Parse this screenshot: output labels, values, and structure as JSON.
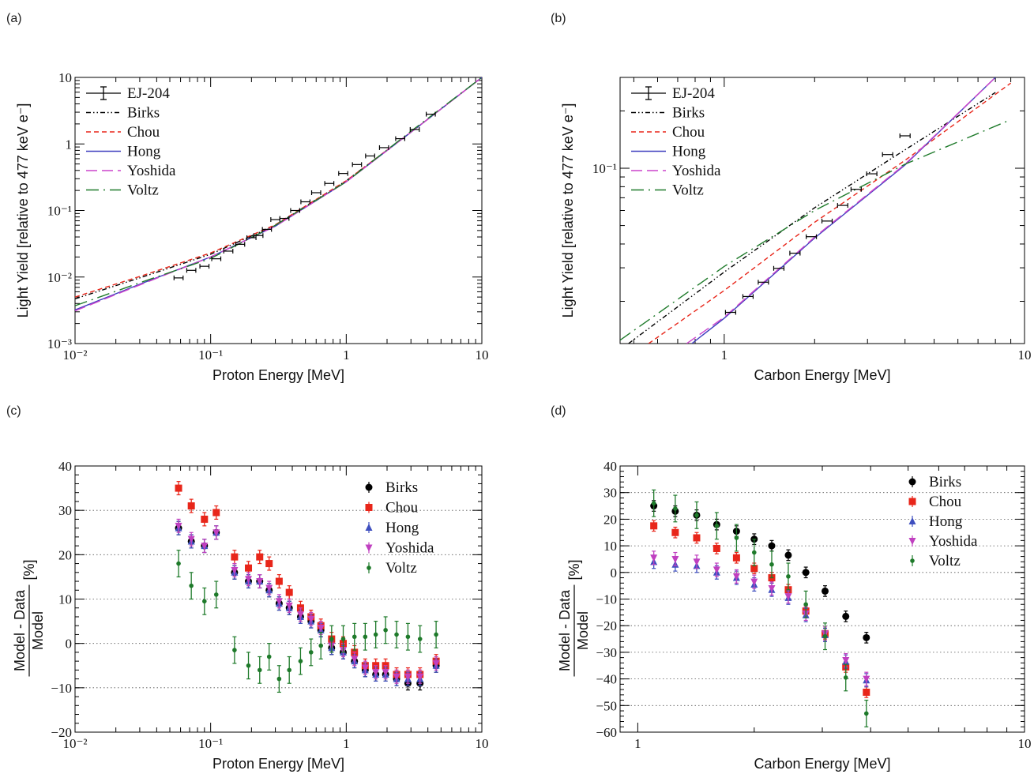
{
  "chart_data": [
    {
      "panel_label": "(a)",
      "type": "line",
      "xlabel": "Proton Energy [MeV]",
      "ylabel": "Light Yield [relative to 477 keV e⁻]",
      "x_scale": "log",
      "y_scale": "log",
      "xlim": [
        0.01,
        10
      ],
      "ylim": [
        0.001,
        10
      ],
      "x_ticks": [
        {
          "v": 0.01,
          "label": "10⁻²"
        },
        {
          "v": 0.1,
          "label": "10⁻¹"
        },
        {
          "v": 1,
          "label": "1"
        },
        {
          "v": 10,
          "label": "10"
        }
      ],
      "y_ticks": [
        {
          "v": 0.001,
          "label": "10⁻³"
        },
        {
          "v": 0.01,
          "label": "10⁻²"
        },
        {
          "v": 0.1,
          "label": "10⁻¹"
        },
        {
          "v": 1,
          "label": "1"
        },
        {
          "v": 10,
          "label": "10"
        }
      ],
      "legend_position": "top-left",
      "data_series": {
        "name": "EJ-204",
        "x": [
          0.058,
          0.072,
          0.09,
          0.11,
          0.135,
          0.165,
          0.2,
          0.225,
          0.26,
          0.3,
          0.35,
          0.42,
          0.5,
          0.6,
          0.75,
          0.95,
          1.2,
          1.5,
          1.9,
          2.5,
          3.2,
          4.2
        ],
        "y": [
          0.0097,
          0.0126,
          0.0145,
          0.0188,
          0.0245,
          0.031,
          0.039,
          0.042,
          0.052,
          0.073,
          0.076,
          0.1,
          0.135,
          0.185,
          0.255,
          0.36,
          0.49,
          0.66,
          0.88,
          1.2,
          1.65,
          2.8
        ],
        "xerr": 0.08
      },
      "series": [
        {
          "name": "Birks",
          "style": "dash-dot-dot",
          "color": "#000000",
          "x": [
            0.01,
            0.03,
            0.1,
            0.3,
            1,
            3,
            10
          ],
          "y": [
            0.0047,
            0.0097,
            0.022,
            0.06,
            0.28,
            1.5,
            10
          ]
        },
        {
          "name": "Chou",
          "style": "dashed",
          "color": "#e8261a",
          "x": [
            0.01,
            0.03,
            0.1,
            0.3,
            1,
            3,
            10
          ],
          "y": [
            0.005,
            0.0102,
            0.023,
            0.061,
            0.28,
            1.5,
            10
          ]
        },
        {
          "name": "Hong",
          "style": "solid",
          "color": "#3f3fbf",
          "x": [
            0.01,
            0.03,
            0.1,
            0.3,
            1,
            3,
            10
          ],
          "y": [
            0.0032,
            0.0078,
            0.02,
            0.058,
            0.27,
            1.5,
            10
          ]
        },
        {
          "name": "Yoshida",
          "style": "long-dash",
          "color": "#cc44cc",
          "x": [
            0.01,
            0.03,
            0.1,
            0.3,
            1,
            3,
            10
          ],
          "y": [
            0.0031,
            0.0076,
            0.02,
            0.058,
            0.27,
            1.5,
            10
          ]
        },
        {
          "name": "Voltz",
          "style": "long-dash-dot",
          "color": "#1e7a2a",
          "x": [
            0.01,
            0.03,
            0.1,
            0.3,
            1,
            3,
            10
          ],
          "y": [
            0.0037,
            0.0082,
            0.019,
            0.06,
            0.27,
            1.55,
            10
          ]
        }
      ]
    },
    {
      "panel_label": "(b)",
      "type": "line",
      "xlabel": "Carbon Energy [MeV]",
      "ylabel": "Light Yield [relative to 477 keV e⁻]",
      "x_scale": "log",
      "y_scale": "log",
      "xlim": [
        0.45,
        10
      ],
      "ylim": [
        0.012,
        0.3
      ],
      "x_ticks": [
        {
          "v": 1,
          "label": "1"
        },
        {
          "v": 10,
          "label": "10"
        }
      ],
      "y_ticks": [
        {
          "v": 0.1,
          "label": "10⁻¹"
        }
      ],
      "legend_position": "top-left",
      "data_series": {
        "name": "EJ-204",
        "x": [
          1.05,
          1.2,
          1.35,
          1.52,
          1.72,
          1.95,
          2.2,
          2.48,
          2.75,
          3.1,
          3.5,
          4.0
        ],
        "y": [
          0.0175,
          0.0212,
          0.0252,
          0.0298,
          0.0358,
          0.0437,
          0.0528,
          0.0638,
          0.0775,
          0.0935,
          0.118,
          0.148
        ],
        "xerr": 0.04
      },
      "series": [
        {
          "name": "Birks",
          "style": "dash-dot-dot",
          "color": "#000000",
          "x": [
            0.48,
            1,
            2,
            4,
            8
          ],
          "y": [
            0.012,
            0.0285,
            0.062,
            0.125,
            0.25
          ]
        },
        {
          "name": "Chou",
          "style": "dashed",
          "color": "#e8261a",
          "x": [
            0.56,
            1,
            2,
            4,
            9
          ],
          "y": [
            0.012,
            0.0228,
            0.052,
            0.11,
            0.28
          ]
        },
        {
          "name": "Hong",
          "style": "solid",
          "color": "#3f3fbf",
          "x": [
            0.78,
            1,
            2,
            4,
            8
          ],
          "y": [
            0.012,
            0.0163,
            0.043,
            0.104,
            0.3
          ]
        },
        {
          "name": "Yoshida",
          "style": "long-dash",
          "color": "#cc44cc",
          "x": [
            0.75,
            1,
            2,
            4,
            8
          ],
          "y": [
            0.012,
            0.0165,
            0.0435,
            0.105,
            0.3
          ]
        },
        {
          "name": "Voltz",
          "style": "long-dash-dot",
          "color": "#1e7a2a",
          "x": [
            0.45,
            1,
            2,
            4,
            9
          ],
          "y": [
            0.0125,
            0.0305,
            0.06,
            0.105,
            0.18
          ]
        }
      ]
    },
    {
      "panel_label": "(c)",
      "type": "scatter",
      "xlabel": "Proton Energy [MeV]",
      "ylabel_numerator": "Model - Data",
      "ylabel_denominator": "Model",
      "ylabel_unit": "[%]",
      "x_scale": "log",
      "xlim": [
        0.01,
        10
      ],
      "ylim": [
        -20,
        40
      ],
      "x_ticks": [
        {
          "v": 0.01,
          "label": "10⁻²"
        },
        {
          "v": 0.1,
          "label": "10⁻¹"
        },
        {
          "v": 1,
          "label": "1"
        },
        {
          "v": 10,
          "label": "10"
        }
      ],
      "y_ticks": [
        {
          "v": -20,
          "label": "−20"
        },
        {
          "v": -10,
          "label": "−10"
        },
        {
          "v": 0,
          "label": "0"
        },
        {
          "v": 10,
          "label": "10"
        },
        {
          "v": 20,
          "label": "20"
        },
        {
          "v": 30,
          "label": "30"
        },
        {
          "v": 40,
          "label": "40"
        }
      ],
      "grid": "horizontal-dotted",
      "legend_position": "top-right",
      "x": [
        0.058,
        0.072,
        0.09,
        0.11,
        0.15,
        0.19,
        0.23,
        0.27,
        0.32,
        0.38,
        0.46,
        0.55,
        0.65,
        0.78,
        0.95,
        1.15,
        1.38,
        1.65,
        1.95,
        2.35,
        2.85,
        3.5,
        4.6
      ],
      "series": [
        {
          "name": "Birks",
          "marker": "circle",
          "color": "#000000",
          "values": [
            26,
            23,
            22,
            25,
            16,
            14,
            14,
            12,
            9,
            8,
            6,
            5,
            3,
            -1,
            -2,
            -4,
            -6,
            -7,
            -7,
            -8,
            -9,
            -9,
            -5
          ],
          "err": 1.5
        },
        {
          "name": "Chou",
          "marker": "square",
          "color": "#e8261a",
          "values": [
            35,
            31,
            28,
            29.5,
            19.5,
            17,
            19.5,
            18,
            14,
            11.5,
            8,
            6,
            4,
            1,
            0,
            -2,
            -5,
            -5,
            -5,
            -7,
            -7,
            -7,
            -4
          ],
          "err": 1.5
        },
        {
          "name": "Hong",
          "marker": "triangle-up",
          "color": "#3f4fbf",
          "values": [
            26,
            23,
            22,
            25,
            16,
            14,
            14,
            12,
            9,
            8,
            6,
            5,
            3,
            -1,
            -2,
            -4,
            -6,
            -7,
            -7,
            -8,
            -8,
            -8,
            -5
          ],
          "err": 1.5
        },
        {
          "name": "Yoshida",
          "marker": "triangle-down",
          "color": "#c040c0",
          "values": [
            26.5,
            23.5,
            22,
            25,
            16.5,
            14.5,
            14,
            12.5,
            9.5,
            8.5,
            6.5,
            5.5,
            3.5,
            -0.5,
            -1.5,
            -3.5,
            -5.5,
            -6.5,
            -6.5,
            -7.5,
            -7.5,
            -7.5,
            -4.5
          ],
          "err": 1.5
        },
        {
          "name": "Voltz",
          "marker": "small-circle",
          "color": "#1e7a2a",
          "values": [
            18,
            13,
            9.5,
            11,
            -1.5,
            -5,
            -6,
            -3,
            -8,
            -6,
            -4,
            -2,
            -0.5,
            1,
            1,
            1.5,
            1.5,
            2,
            3,
            2,
            1.5,
            1,
            2
          ],
          "err": 3
        }
      ]
    },
    {
      "panel_label": "(d)",
      "type": "scatter",
      "xlabel": "Carbon Energy [MeV]",
      "ylabel_numerator": "Model - Data",
      "ylabel_denominator": "Model",
      "ylabel_unit": "[%]",
      "x_scale": "log",
      "xlim": [
        0.9,
        10
      ],
      "ylim": [
        -60,
        40
      ],
      "x_ticks": [
        {
          "v": 1,
          "label": "1"
        },
        {
          "v": 10,
          "label": "10"
        }
      ],
      "y_ticks": [
        {
          "v": -60,
          "label": "−60"
        },
        {
          "v": -50,
          "label": "−50"
        },
        {
          "v": -40,
          "label": "−40"
        },
        {
          "v": -30,
          "label": "−30"
        },
        {
          "v": -20,
          "label": "−20"
        },
        {
          "v": -10,
          "label": "−10"
        },
        {
          "v": 0,
          "label": "0"
        },
        {
          "v": 10,
          "label": "10"
        },
        {
          "v": 20,
          "label": "20"
        },
        {
          "v": 30,
          "label": "30"
        },
        {
          "v": 40,
          "label": "40"
        }
      ],
      "grid": "horizontal-dotted",
      "legend_position": "top-right",
      "x": [
        1.1,
        1.25,
        1.42,
        1.6,
        1.8,
        2.0,
        2.22,
        2.45,
        2.72,
        3.05,
        3.45,
        3.9
      ],
      "series": [
        {
          "name": "Birks",
          "marker": "circle",
          "color": "#000000",
          "values": [
            25,
            23,
            21.5,
            18,
            15.5,
            12.5,
            10,
            6.5,
            0,
            -7,
            -16.5,
            -24.5
          ],
          "err": 2
        },
        {
          "name": "Chou",
          "marker": "square",
          "color": "#e8261a",
          "values": [
            17.5,
            15,
            13,
            9,
            5.5,
            1.5,
            -2,
            -6.5,
            -14.5,
            -23,
            -35.5,
            -45
          ],
          "err": 2
        },
        {
          "name": "Hong",
          "marker": "triangle-up",
          "color": "#3f4fbf",
          "values": [
            4,
            3,
            2.5,
            0,
            -2,
            -4.5,
            -6.5,
            -9.5,
            -16,
            -23.5,
            -33.5,
            -40.5
          ],
          "err": 2.5
        },
        {
          "name": "Yoshida",
          "marker": "triangle-down",
          "color": "#c040c0",
          "values": [
            5.5,
            5,
            4,
            1,
            -1.5,
            -3.5,
            -6,
            -9,
            -15.5,
            -23,
            -33,
            -40
          ],
          "err": 2.5
        },
        {
          "name": "Voltz",
          "marker": "small-circle",
          "color": "#1e7a2a",
          "values": [
            26,
            24,
            21.5,
            17.5,
            13,
            7.5,
            3,
            -1.5,
            -12,
            -24,
            -39.5,
            -53
          ],
          "err": 5
        }
      ]
    }
  ]
}
